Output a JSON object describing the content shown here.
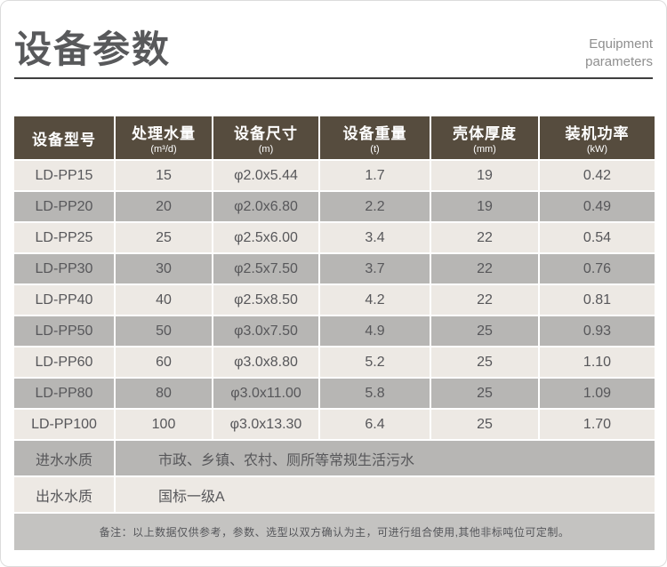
{
  "header": {
    "title": "设备参数",
    "subtitle_line1": "Equipment",
    "subtitle_line2": "parameters"
  },
  "table": {
    "columns": [
      {
        "label": "设备型号",
        "unit": ""
      },
      {
        "label": "处理水量",
        "unit": "(m³/d)"
      },
      {
        "label": "设备尺寸",
        "unit": "(m)"
      },
      {
        "label": "设备重量",
        "unit": "(t)"
      },
      {
        "label": "壳体厚度",
        "unit": "(mm)"
      },
      {
        "label": "装机功率",
        "unit": "(kW)"
      }
    ],
    "rows": [
      [
        "LD-PP15",
        "15",
        "φ2.0x5.44",
        "1.7",
        "19",
        "0.42"
      ],
      [
        "LD-PP20",
        "20",
        "φ2.0x6.80",
        "2.2",
        "19",
        "0.49"
      ],
      [
        "LD-PP25",
        "25",
        "φ2.5x6.00",
        "3.4",
        "22",
        "0.54"
      ],
      [
        "LD-PP30",
        "30",
        "φ2.5x7.50",
        "3.7",
        "22",
        "0.76"
      ],
      [
        "LD-PP40",
        "40",
        "φ2.5x8.50",
        "4.2",
        "22",
        "0.81"
      ],
      [
        "LD-PP50",
        "50",
        "φ3.0x7.50",
        "4.9",
        "25",
        "0.93"
      ],
      [
        "LD-PP60",
        "60",
        "φ3.0x8.80",
        "5.2",
        "25",
        "1.10"
      ],
      [
        "LD-PP80",
        "80",
        "φ3.0x11.00",
        "5.8",
        "25",
        "1.09"
      ],
      [
        "LD-PP100",
        "100",
        "φ3.0x13.30",
        "6.4",
        "25",
        "1.70"
      ]
    ],
    "extra_rows": [
      {
        "label": "进水水质",
        "value": "市政、乡镇、农村、厕所等常规生活污水"
      },
      {
        "label": "出水水质",
        "value": "国标一级A"
      }
    ],
    "note": "备注：以上数据仅供参考，参数、选型以双方确认为主，可进行组合使用,其他非标吨位可定制。"
  },
  "colors": {
    "header_bg": "#564c3e",
    "header_text": "#ffffff",
    "row_light": "#ede9e4",
    "row_gray": "#b7b6b4",
    "note_bg": "#c4c3c1",
    "title_text": "#58595b",
    "subtitle_text": "#8f8f8f",
    "underline": "#3f3f3f",
    "cell_text": "#57575a"
  }
}
